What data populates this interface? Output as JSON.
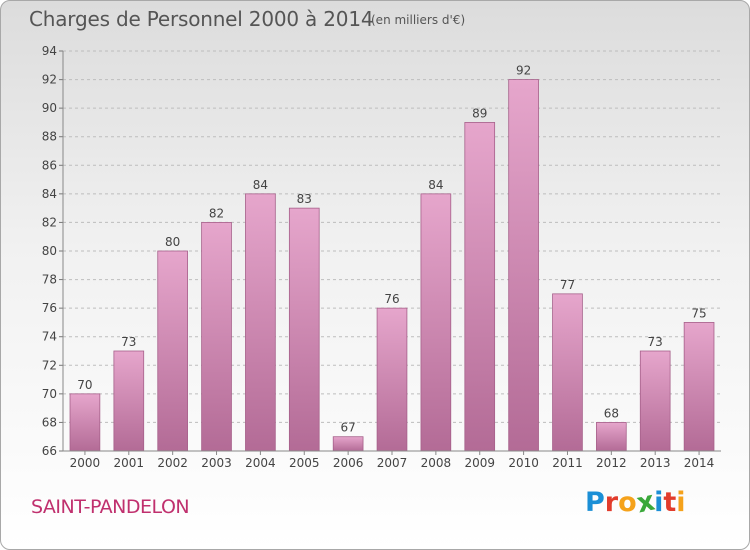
{
  "header": {
    "title": "Charges de Personnel 2000 à 2014",
    "subtitle": "(en milliers d'€)"
  },
  "footer": {
    "commune": "SAINT-PANDELON",
    "brand": "Proxiti",
    "brand_colors": [
      "#1b8fd6",
      "#e23c2c",
      "#f5a21b",
      "#3aa83a",
      "#1b8fd6",
      "#e23c2c",
      "#f5a21b"
    ]
  },
  "colors": {
    "bar_top": "#e6a6cc",
    "bar_bottom": "#b36b96",
    "bar_border": "#a6608a",
    "grid": "#bdbdbd",
    "axis_text": "#444444"
  },
  "chart_data": {
    "type": "bar",
    "categories": [
      "2000",
      "2001",
      "2002",
      "2003",
      "2004",
      "2005",
      "2006",
      "2007",
      "2008",
      "2009",
      "2010",
      "2011",
      "2012",
      "2013",
      "2014"
    ],
    "values": [
      70,
      73,
      80,
      82,
      84,
      83,
      67,
      76,
      84,
      89,
      92,
      77,
      68,
      73,
      75
    ],
    "ylim": [
      66,
      94
    ],
    "yticks": [
      66,
      68,
      70,
      72,
      74,
      76,
      78,
      80,
      82,
      84,
      86,
      88,
      90,
      92,
      94
    ],
    "grid": true,
    "data_labels": true
  }
}
